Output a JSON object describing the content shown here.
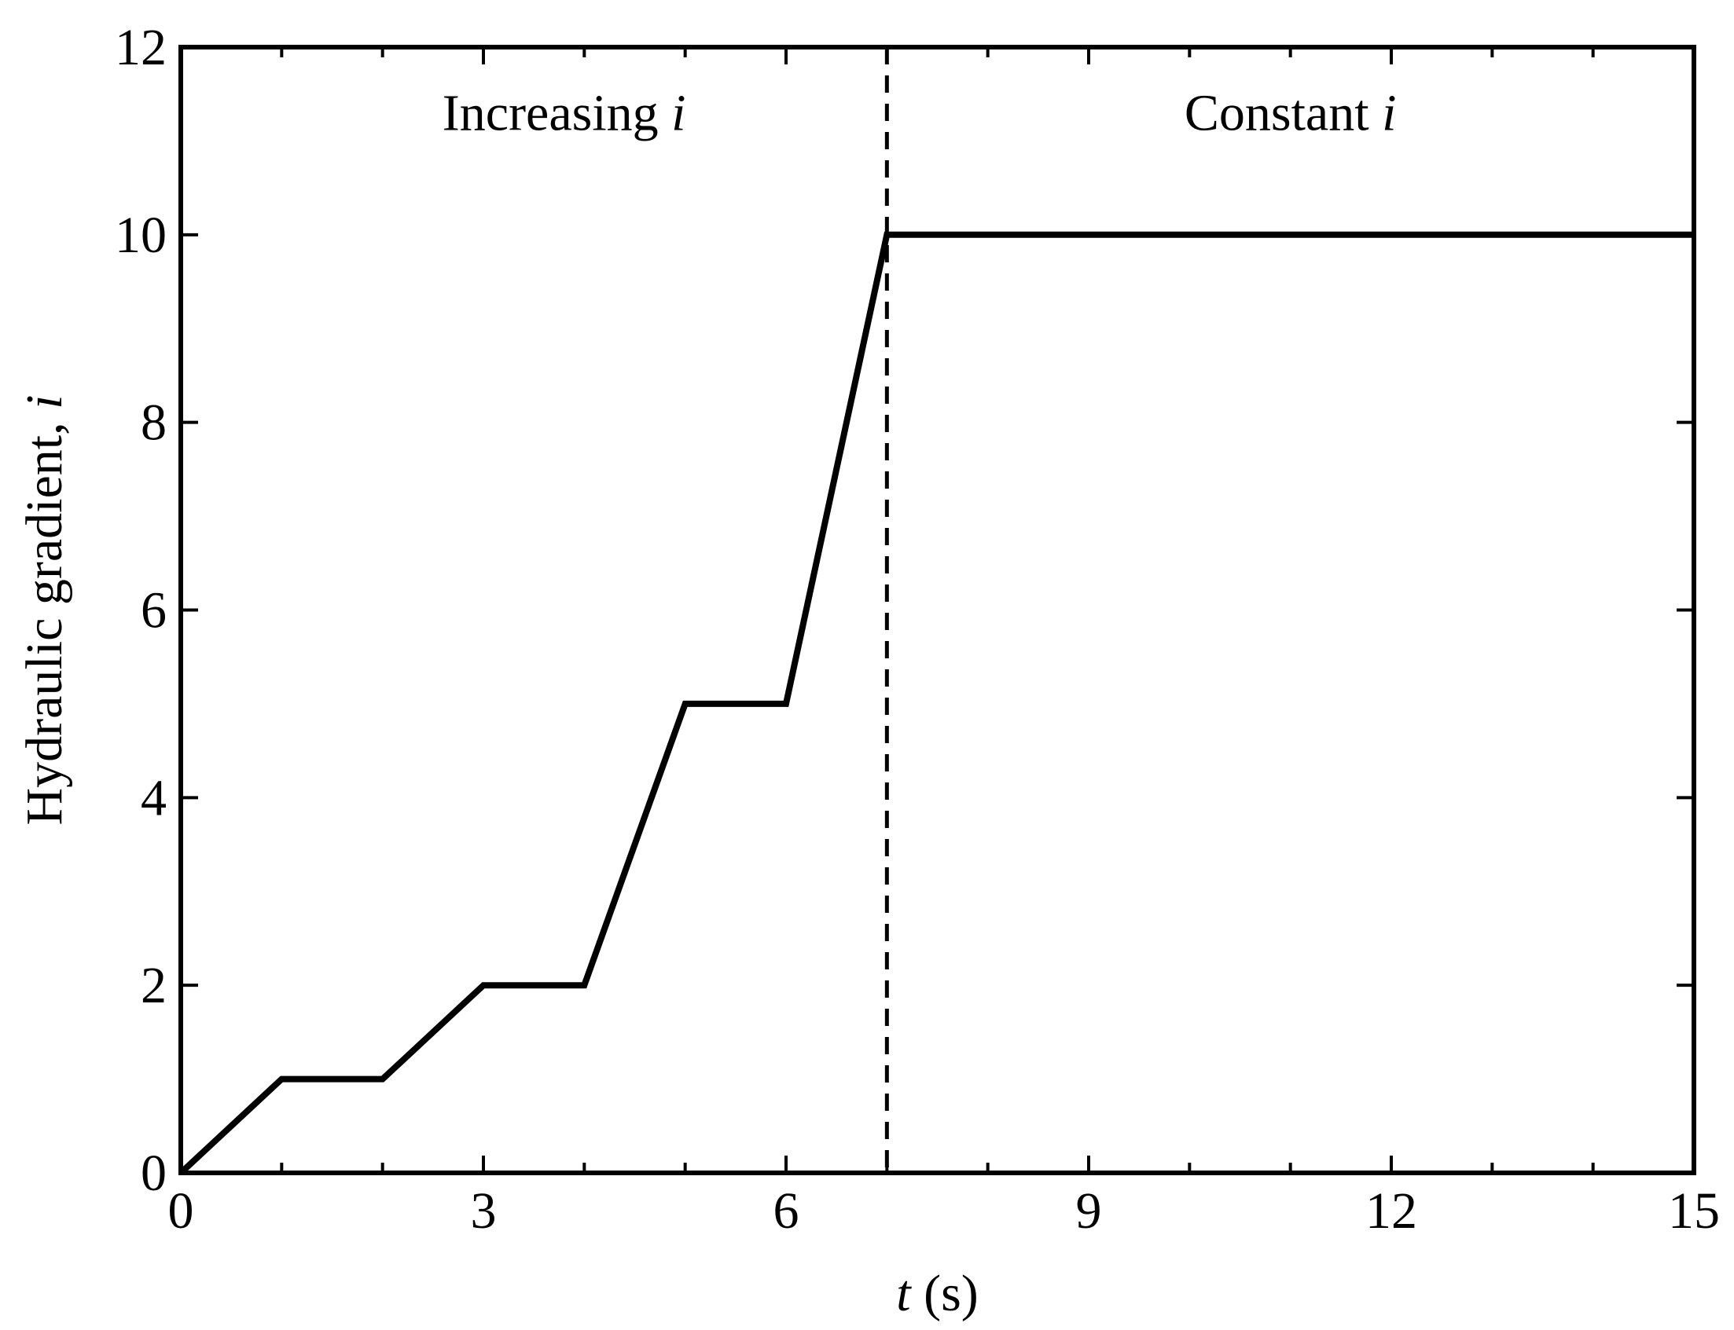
{
  "chart_data": {
    "type": "line",
    "title": "",
    "xlabel": {
      "var": "t",
      "rest": " (s)"
    },
    "ylabel": {
      "text": "Hydraulic gradient, ",
      "var": "i"
    },
    "xlim": [
      0,
      15
    ],
    "ylim": [
      0,
      12
    ],
    "x_ticks": [
      0,
      3,
      6,
      9,
      12,
      15
    ],
    "x_minor_ticks": [
      1,
      2,
      4,
      5,
      7,
      8,
      10,
      11,
      13,
      14
    ],
    "y_ticks": [
      0,
      2,
      4,
      6,
      8,
      10,
      12
    ],
    "y_minor_ticks": [],
    "grid": false,
    "legend": "none",
    "series": [
      {
        "color": "#000000",
        "style": "solid",
        "points": [
          [
            0,
            0
          ],
          [
            1,
            1
          ],
          [
            2,
            1
          ],
          [
            3,
            2
          ],
          [
            4,
            2
          ],
          [
            5,
            5
          ],
          [
            6,
            5
          ],
          [
            7,
            10
          ],
          [
            15,
            10
          ]
        ]
      }
    ],
    "vertical_lines": [
      {
        "x": 7,
        "style": "dashed",
        "color": "#000000"
      }
    ],
    "annotations": [
      {
        "text": "Increasing ",
        "var": "i",
        "x": 3.8,
        "y": 11.3
      },
      {
        "text": "Constant ",
        "var": "i",
        "x": 11.0,
        "y": 11.3
      }
    ]
  }
}
